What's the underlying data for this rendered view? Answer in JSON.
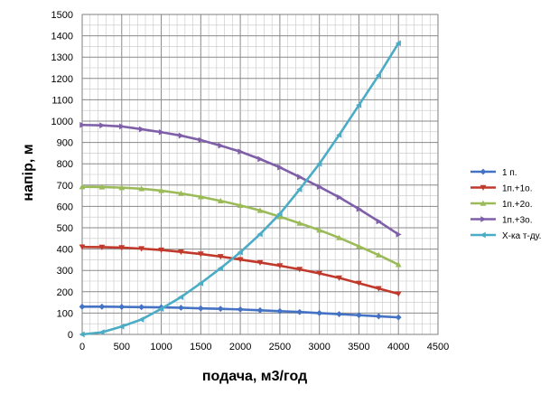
{
  "chart_data": {
    "type": "line",
    "title": "",
    "xlabel": "подача, м3/год",
    "ylabel": "напір, м",
    "xlim": [
      0,
      4500
    ],
    "ylim": [
      0,
      1500
    ],
    "x_ticks": [
      0,
      500,
      1000,
      1500,
      2000,
      2500,
      3000,
      3500,
      4000,
      4500
    ],
    "y_ticks": [
      0,
      100,
      200,
      300,
      400,
      500,
      600,
      700,
      800,
      900,
      1000,
      1100,
      1200,
      1300,
      1400,
      1500
    ],
    "grid": "major and minor",
    "legend_position": "right",
    "x": [
      0,
      250,
      500,
      750,
      1000,
      1250,
      1500,
      1750,
      2000,
      2250,
      2500,
      2750,
      3000,
      3250,
      3500,
      3750,
      4000
    ],
    "series": [
      {
        "name": "1 п.",
        "color": "#4472C4",
        "marker": "diamond",
        "values": [
          130,
          130,
          129,
          128,
          127,
          125,
          122,
          120,
          117,
          113,
          109,
          105,
          100,
          95,
          90,
          85,
          80
        ]
      },
      {
        "name": "1п.+1о.",
        "color": "#C0392B",
        "marker": "triangle-down",
        "values": [
          410,
          409,
          407,
          402,
          396,
          387,
          377,
          365,
          351,
          337,
          322,
          305,
          286,
          265,
          240,
          215,
          190
        ]
      },
      {
        "name": "1п.+2о.",
        "color": "#9BBB59",
        "marker": "triangle-up",
        "values": [
          692,
          691,
          688,
          683,
          674,
          661,
          645,
          626,
          605,
          581,
          552,
          521,
          489,
          453,
          413,
          372,
          327
        ]
      },
      {
        "name": "1п.+3о.",
        "color": "#7E5FA8",
        "marker": "triangle-right",
        "values": [
          982,
          980,
          975,
          962,
          948,
          932,
          911,
          885,
          857,
          822,
          783,
          738,
          692,
          643,
          588,
          530,
          469
        ]
      },
      {
        "name": "Х-ка т-ду.",
        "color": "#4BACC6",
        "marker": "triangle-left",
        "values": [
          0,
          10,
          37,
          70,
          120,
          175,
          240,
          310,
          385,
          470,
          565,
          680,
          800,
          935,
          1075,
          1215,
          1365
        ]
      }
    ]
  }
}
